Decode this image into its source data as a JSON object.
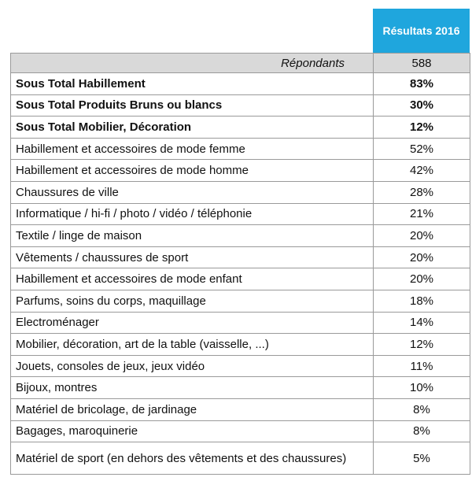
{
  "header": {
    "title": "Résultats 2016"
  },
  "respondents": {
    "label": "Répondants",
    "value": "588"
  },
  "subtotals": [
    {
      "label": "Sous Total Habillement",
      "value": "83%"
    },
    {
      "label": "Sous Total Produits Bruns ou blancs",
      "value": "30%"
    },
    {
      "label": "Sous Total Mobilier, Décoration",
      "value": "12%"
    }
  ],
  "rows": [
    {
      "label": "Habillement et accessoires de mode femme",
      "value": "52%"
    },
    {
      "label": "Habillement et accessoires de mode homme",
      "value": "42%"
    },
    {
      "label": "Chaussures de ville",
      "value": "28%"
    },
    {
      "label": "Informatique / hi-fi /  photo / vidéo / téléphonie",
      "value": "21%"
    },
    {
      "label": "Textile / linge de maison",
      "value": "20%"
    },
    {
      "label": "Vêtements / chaussures de sport",
      "value": "20%"
    },
    {
      "label": "Habillement et accessoires de mode enfant",
      "value": "20%"
    },
    {
      "label": "Parfums, soins du corps, maquillage",
      "value": "18%"
    },
    {
      "label": "Electroménager",
      "value": "14%"
    },
    {
      "label": "Mobilier, décoration, art de la table (vaisselle, ...)",
      "value": "12%"
    },
    {
      "label": "Jouets, consoles de jeux, jeux vidéo",
      "value": "11%"
    },
    {
      "label": "Bijoux, montres",
      "value": "10%"
    },
    {
      "label": "Matériel de bricolage, de jardinage",
      "value": "8%"
    },
    {
      "label": "Bagages, maroquinerie",
      "value": "8%"
    },
    {
      "label": "Matériel de sport (en dehors des vêtements et des chaussures)",
      "value": "5%"
    }
  ],
  "colors": {
    "header_bg": "#1fa6dd",
    "respondents_bg": "#d9d9d9",
    "border": "#9a9a9a"
  }
}
